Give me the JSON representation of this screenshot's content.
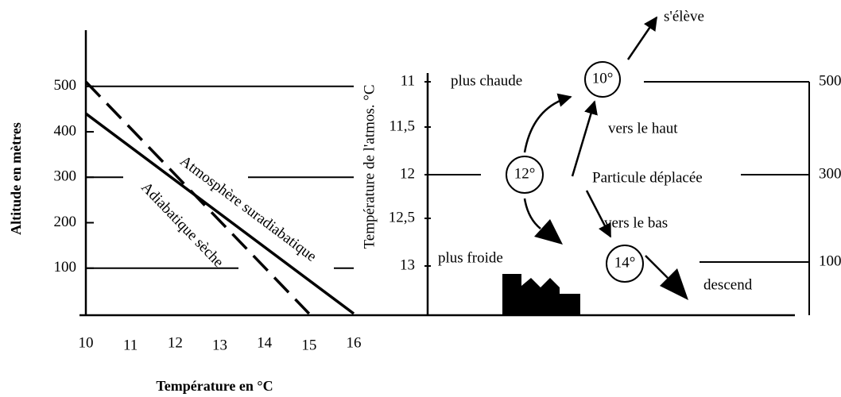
{
  "chart_data": {
    "type": "line",
    "x_label": "Température en °C",
    "y_label": "Altitude en mètres",
    "xlim": [
      10,
      16
    ],
    "ylim": [
      0,
      620
    ],
    "xticks": [
      10,
      11,
      12,
      13,
      14,
      15,
      16
    ],
    "yticks": [
      100,
      200,
      300,
      400,
      500
    ],
    "grid_levels": [
      100,
      300,
      500
    ],
    "series": [
      {
        "name": "Atmosphère suradiabatique",
        "color": "#000000",
        "style": "solid",
        "x": [
          10,
          16
        ],
        "values": [
          440,
          0
        ]
      },
      {
        "name": "Adiabatique sèche",
        "color": "#000000",
        "style": "dashed",
        "x": [
          10,
          15
        ],
        "values": [
          510,
          0
        ]
      }
    ]
  },
  "diagram": {
    "temp_axis": {
      "title": "Température de l'atmos. °C",
      "ticks": [
        "11",
        "11,5",
        "12",
        "12,5",
        "13"
      ]
    },
    "altitude_scale": [
      "500 m",
      "300 m",
      "100 m"
    ],
    "particles": [
      "10°",
      "12°",
      "14°"
    ],
    "labels": {
      "rises": "s'élève",
      "warmer": "plus chaude",
      "up": "vers le haut",
      "displaced": "Particule déplacée",
      "down": "vers le bas",
      "colder": "plus froide",
      "descends": "descend"
    }
  }
}
